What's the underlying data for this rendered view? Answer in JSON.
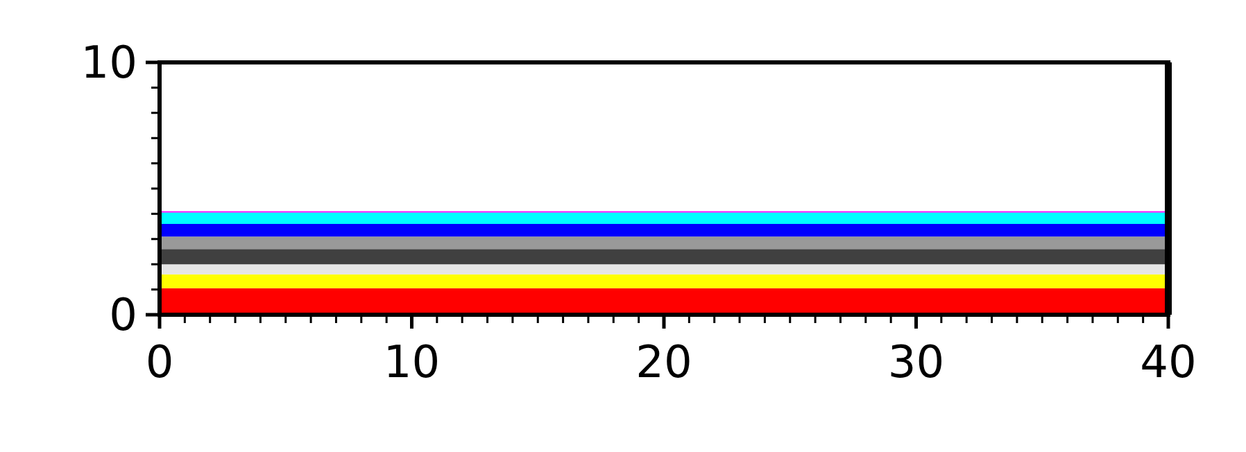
{
  "chart_data": {
    "type": "area",
    "stacked": true,
    "x": [
      0,
      40
    ],
    "xlim": [
      0,
      40
    ],
    "ylim": [
      0,
      10
    ],
    "xticks": [
      0,
      {
        "value": 1,
        "label": null
      },
      {
        "value": 2,
        "label": null
      },
      {
        "value": 3,
        "label": null
      },
      {
        "value": 4,
        "label": null
      },
      {
        "value": 5,
        "label": null
      },
      {
        "value": 6,
        "label": null
      },
      {
        "value": 7,
        "label": null
      },
      {
        "value": 8,
        "label": null
      },
      {
        "value": 9,
        "label": null
      },
      10,
      {
        "value": 11,
        "label": null
      },
      {
        "value": 12,
        "label": null
      },
      {
        "value": 13,
        "label": null
      },
      {
        "value": 14,
        "label": null
      },
      {
        "value": 15,
        "label": null
      },
      {
        "value": 16,
        "label": null
      },
      {
        "value": 17,
        "label": null
      },
      {
        "value": 18,
        "label": null
      },
      {
        "value": 19,
        "label": null
      },
      20,
      {
        "value": 21,
        "label": null
      },
      {
        "value": 22,
        "label": null
      },
      {
        "value": 23,
        "label": null
      },
      {
        "value": 24,
        "label": null
      },
      {
        "value": 25,
        "label": null
      },
      {
        "value": 26,
        "label": null
      },
      {
        "value": 27,
        "label": null
      },
      {
        "value": 28,
        "label": null
      },
      {
        "value": 29,
        "label": null
      },
      30,
      {
        "value": 31,
        "label": null
      },
      {
        "value": 32,
        "label": null
      },
      {
        "value": 33,
        "label": null
      },
      {
        "value": 34,
        "label": null
      },
      {
        "value": 35,
        "label": null
      },
      {
        "value": 36,
        "label": null
      },
      {
        "value": 37,
        "label": null
      },
      {
        "value": 38,
        "label": null
      },
      {
        "value": 39,
        "label": null
      },
      40
    ],
    "yticks": [
      0,
      {
        "value": 1,
        "label": null
      },
      {
        "value": 2,
        "label": null
      },
      {
        "value": 3,
        "label": null
      },
      {
        "value": 4,
        "label": null
      },
      {
        "value": 5,
        "label": null
      },
      {
        "value": 6,
        "label": null
      },
      {
        "value": 7,
        "label": null
      },
      {
        "value": 8,
        "label": null
      },
      {
        "value": 9,
        "label": null
      },
      10
    ],
    "grid": false,
    "series": [
      {
        "color": "#ff0000",
        "values": [
          1.05,
          1.05
        ]
      },
      {
        "color": "#ffff00",
        "values": [
          0.55,
          0.55
        ]
      },
      {
        "color": "#e6e6e6",
        "values": [
          0.4,
          0.4
        ]
      },
      {
        "color": "#404040",
        "values": [
          0.6,
          0.6
        ]
      },
      {
        "color": "#999999",
        "values": [
          0.5,
          0.5
        ]
      },
      {
        "color": "#0000ff",
        "values": [
          0.5,
          0.5
        ]
      },
      {
        "color": "#00ffff",
        "values": [
          0.45,
          0.45
        ]
      },
      {
        "color": "#ff00ff",
        "values": [
          0.05,
          0.05
        ]
      }
    ]
  }
}
